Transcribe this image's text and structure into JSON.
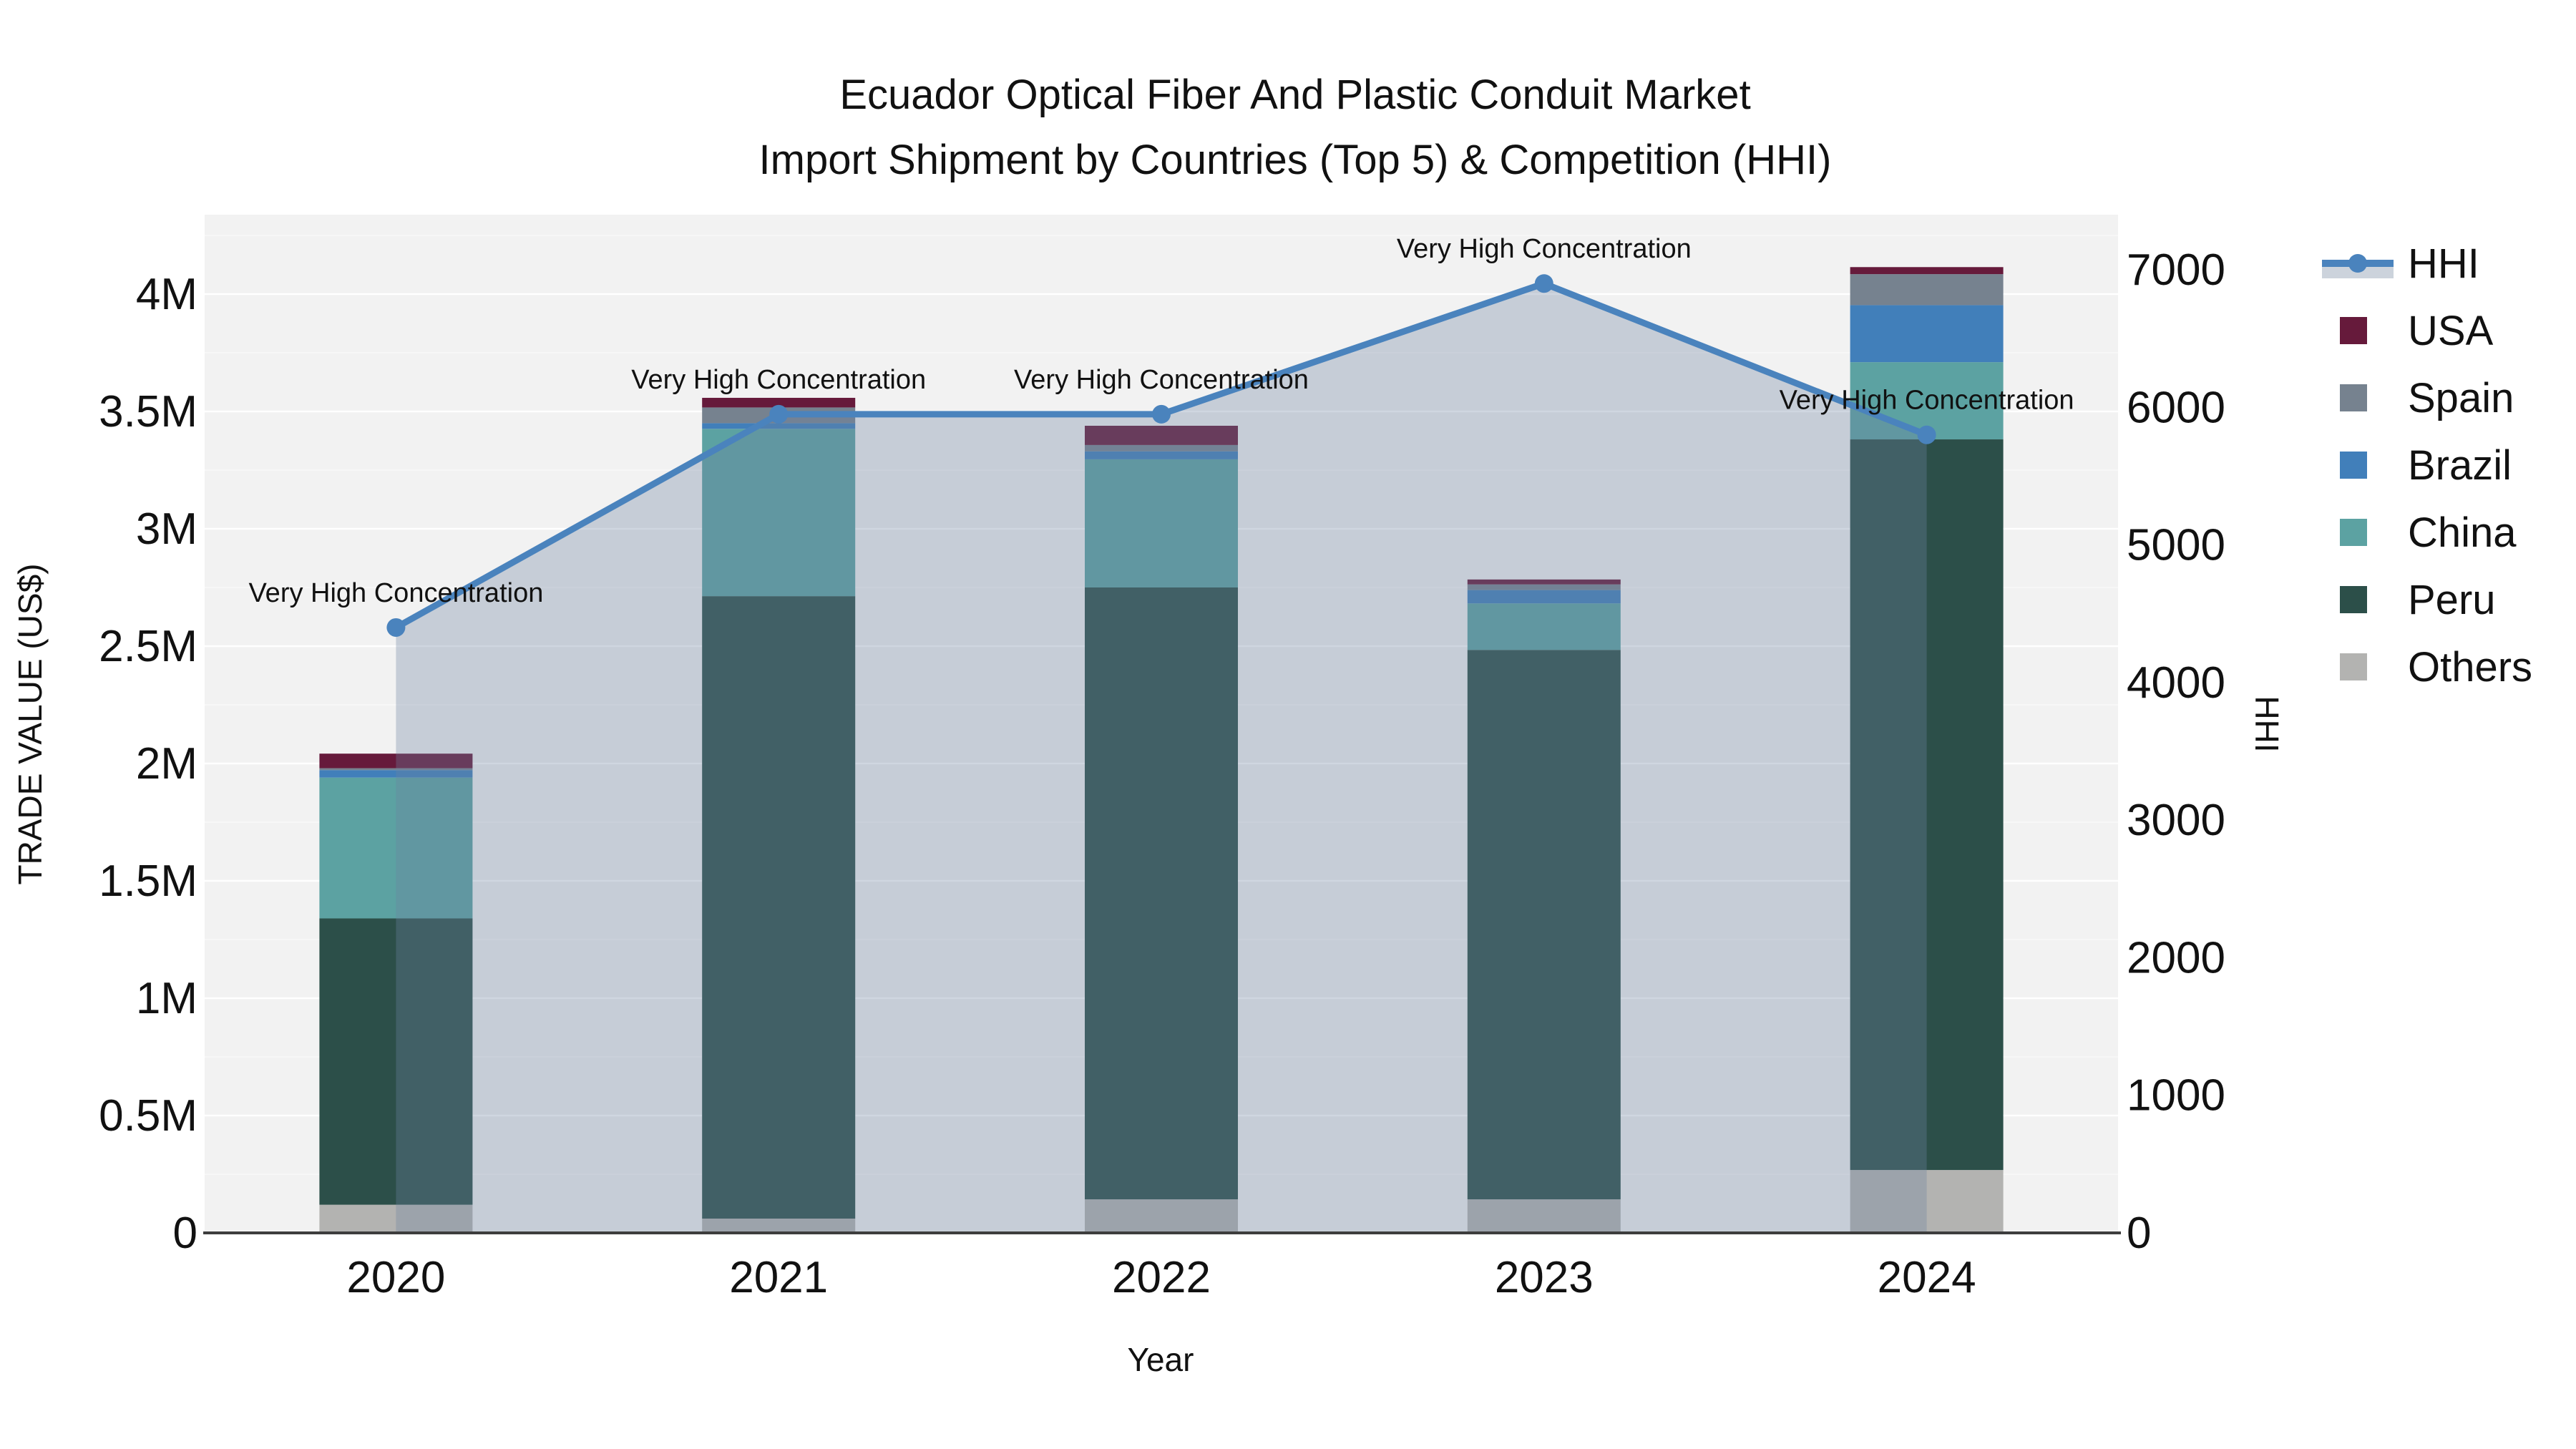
{
  "title": {
    "line1": "Ecuador Optical Fiber And Plastic Conduit Market",
    "line2": "Import Shipment by Countries (Top 5) & Competition (HHI)"
  },
  "axes": {
    "x": {
      "title": "Year",
      "categories": [
        "2020",
        "2021",
        "2022",
        "2023",
        "2024"
      ]
    },
    "left": {
      "title": "TRADE VALUE (US$)",
      "ticks": [
        "0",
        "0.5M",
        "1M",
        "1.5M",
        "2M",
        "2.5M",
        "3M",
        "3.5M",
        "4M"
      ]
    },
    "right": {
      "title": "HHI",
      "ticks": [
        "0",
        "1000",
        "2000",
        "3000",
        "4000",
        "5000",
        "6000",
        "7000"
      ]
    }
  },
  "legend": {
    "items": [
      {
        "label": "HHI",
        "type": "line",
        "color": "#4A83BD"
      },
      {
        "label": "USA",
        "type": "square",
        "color": "#661A3B"
      },
      {
        "label": "Spain",
        "type": "square",
        "color": "#76828F"
      },
      {
        "label": "Brazil",
        "type": "square",
        "color": "#417FBA"
      },
      {
        "label": "China",
        "type": "square",
        "color": "#5CA2A2"
      },
      {
        "label": "Peru",
        "type": "square",
        "color": "#2C4F49"
      },
      {
        "label": "Others",
        "type": "square",
        "color": "#B3B3B1"
      }
    ]
  },
  "colors": {
    "plot_background": "#f2f2f2",
    "grid_major": "rgba(255,255,255,0.95)",
    "grid_minor": "rgba(255,255,255,0.5)",
    "axis_line": "#3d3d3d",
    "hhi_line": "#4A83BD",
    "hhi_fill": "rgba(110,130,160,0.33)",
    "text": "#111111"
  },
  "chart_data": {
    "type": "bar+line",
    "title": "Ecuador Optical Fiber And Plastic Conduit Market — Import Shipment by Countries (Top 5) & Competition (HHI)",
    "categories": [
      "2020",
      "2021",
      "2022",
      "2023",
      "2024"
    ],
    "bar_unit": "US$ trade value",
    "stacking": "bottom-to-top: Others, Peru, China, Brazil, Spain, USA",
    "series": [
      {
        "name": "USA",
        "color": "#661A3B",
        "values": [
          62000,
          41000,
          82000,
          21000,
          30000
        ]
      },
      {
        "name": "Spain",
        "color": "#76828F",
        "values": [
          8000,
          67000,
          27000,
          24000,
          132000
        ]
      },
      {
        "name": "Brazil",
        "color": "#417FBA",
        "values": [
          32000,
          24000,
          34000,
          57000,
          243000
        ]
      },
      {
        "name": "China",
        "color": "#5CA2A2",
        "values": [
          600000,
          713000,
          546000,
          198000,
          329000
        ]
      },
      {
        "name": "Peru",
        "color": "#2C4F49",
        "values": [
          1220000,
          2652000,
          2607000,
          2341000,
          3113000
        ]
      },
      {
        "name": "Others",
        "color": "#B3B3B1",
        "values": [
          120000,
          61000,
          143000,
          143000,
          268000
        ]
      }
    ],
    "totals": [
      2042000,
      3558000,
      3439000,
      2784000,
      4115000
    ],
    "hhi": {
      "name": "HHI",
      "axis": "right",
      "color": "#4A83BD",
      "fill": "rgba(110,130,160,0.33)",
      "values": [
        4400,
        5950,
        5950,
        6900,
        5800
      ]
    },
    "annotations": [
      "Very High Concentration",
      "Very High Concentration",
      "Very High Concentration",
      "Very High Concentration",
      "Very High Concentration"
    ],
    "left_axis": {
      "label": "TRADE VALUE (US$)",
      "range": [
        0,
        4340000
      ],
      "tick_step": 500000,
      "grid": true
    },
    "right_axis": {
      "label": "HHI",
      "range": [
        0,
        7400
      ],
      "tick_step": 1000
    },
    "xlabel": "Year",
    "legend_position": "right"
  }
}
